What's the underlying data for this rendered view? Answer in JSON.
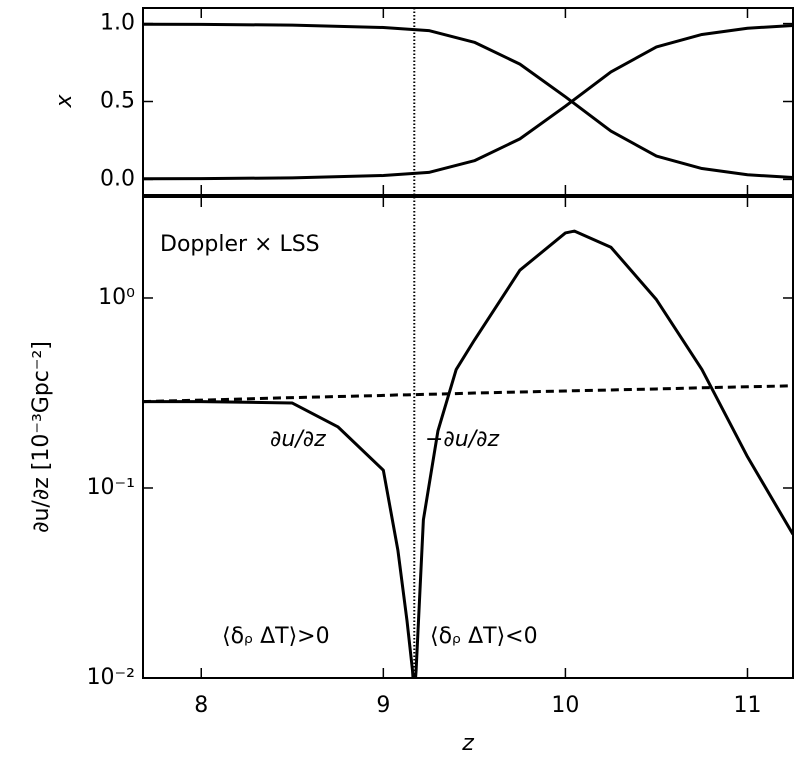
{
  "chart_data": [
    {
      "type": "line",
      "ylabel": "x",
      "xlim": [
        7.68,
        11.25
      ],
      "ylim": [
        -0.1,
        1.1
      ],
      "yticks": [
        {
          "value": 0,
          "label": "0.0"
        },
        0.5,
        {
          "value": 1,
          "label": "1.0"
        }
      ],
      "vline": 9.17,
      "x": [
        7.68,
        8,
        8.5,
        9,
        9.25,
        9.5,
        9.75,
        10,
        10.25,
        10.5,
        10.75,
        11,
        11.25
      ],
      "series": [
        {
          "color": "#000000",
          "values": [
            0.996,
            0.995,
            0.99,
            0.975,
            0.955,
            0.88,
            0.74,
            0.53,
            0.31,
            0.15,
            0.07,
            0.03,
            0.012
          ]
        },
        {
          "color": "#000000",
          "values": [
            0.004,
            0.005,
            0.01,
            0.025,
            0.045,
            0.12,
            0.26,
            0.47,
            0.69,
            0.85,
            0.93,
            0.97,
            0.988
          ]
        }
      ]
    },
    {
      "type": "line",
      "log_y": true,
      "xlabel": "z",
      "ylabel": "∂u/∂z [10⁻³Gpc⁻²]",
      "annotations": [
        "Doppler × LSS",
        "∂u/∂z",
        "−∂u/∂z",
        "⟨δᵨ ΔT⟩>0",
        "⟨δᵨ ΔT⟩<0"
      ],
      "xlim": [
        7.68,
        11.25
      ],
      "ylim": [
        0.01,
        3.4
      ],
      "xticks": [
        8,
        9,
        10,
        11
      ],
      "yticks": [
        {
          "value": 0.01,
          "label": "10⁻²"
        },
        {
          "value": 0.1,
          "label": "10⁻¹"
        },
        {
          "value": 1,
          "label": "10⁰"
        }
      ],
      "vline": 9.17,
      "x": [
        7.68,
        8,
        8.5,
        8.75,
        9,
        9.08,
        9.13,
        9.16,
        9.17,
        9.18,
        9.22,
        9.3,
        9.4,
        9.5,
        9.75,
        10,
        10.05,
        10.25,
        10.5,
        10.75,
        11,
        11.25
      ],
      "series": [
        {
          "color": "#000000",
          "values": [
            0.285,
            0.285,
            0.28,
            0.21,
            0.124,
            0.047,
            0.02,
            0.011,
            0.008,
            0.011,
            0.068,
            0.2,
            0.42,
            0.6,
            1.4,
            2.2,
            2.25,
            1.85,
            0.98,
            0.42,
            0.146,
            0.057
          ]
        },
        {
          "color": "#000000",
          "dashed": true,
          "values": [
            0.285,
            0.29,
            0.299,
            0.303,
            0.307,
            0.309,
            0.309,
            0.31,
            0.31,
            0.31,
            0.311,
            0.312,
            0.314,
            0.316,
            0.32,
            0.324,
            0.325,
            0.328,
            0.332,
            0.337,
            0.341,
            0.345
          ]
        }
      ]
    }
  ]
}
